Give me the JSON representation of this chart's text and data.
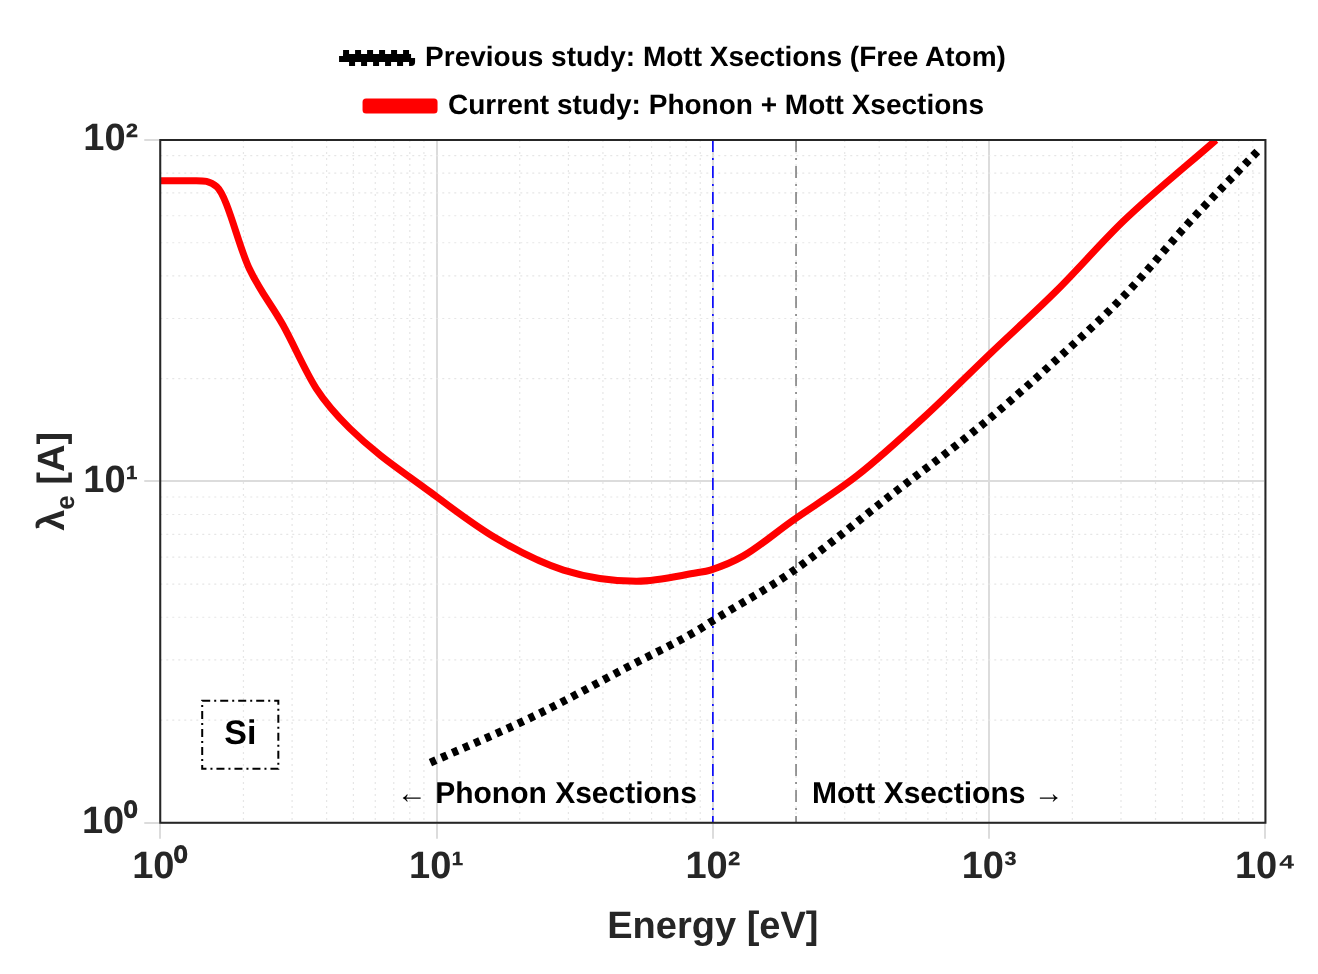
{
  "chart_data": {
    "type": "line",
    "xlabel": "Energy [eV]",
    "ylabel": "λ$_{e}$ [A]",
    "log": "xy",
    "xlim": [
      1,
      10000
    ],
    "ylim": [
      1,
      100
    ],
    "xticks": [
      {
        "value": 1,
        "label": "10⁰"
      },
      {
        "value": 10,
        "label": "10¹"
      },
      {
        "value": 100,
        "label": "10²"
      },
      {
        "value": 1000,
        "label": "10³"
      },
      {
        "value": 10000,
        "label": "10⁴"
      }
    ],
    "yticks": [
      {
        "value": 1,
        "label": "10⁰"
      },
      {
        "value": 10,
        "label": "10¹"
      },
      {
        "value": 100,
        "label": "10²"
      }
    ],
    "grid": true,
    "legend": "top",
    "marker": "none",
    "series": [
      {
        "name": "Previous study: Mott Xsections (Free Atom)",
        "color": "#000000",
        "line_style": "dotted",
        "x": [
          9.5,
          23,
          50,
          87.5,
          98,
          191,
          440,
          957,
          1760,
          3070,
          5360,
          9340
        ],
        "values": [
          1.5,
          2.07,
          2.88,
          3.65,
          3.87,
          5.4,
          9.1,
          14.8,
          22.8,
          34.9,
          58,
          92.5
        ]
      },
      {
        "name": "Current study: Phonon + Mott Xsections",
        "color": "#ff0000",
        "line_style": "solid",
        "x": [
          1,
          1.35,
          1.6,
          2.1,
          2.78,
          3.67,
          4.85,
          9.5,
          16.5,
          28.8,
          53,
          87.5,
          98,
          129,
          191,
          333,
          580,
          1010,
          1760,
          3070,
          6620
        ],
        "values": [
          76,
          76,
          73,
          42,
          28.7,
          18.7,
          14.3,
          9.3,
          6.8,
          5.5,
          5.1,
          5.4,
          5.5,
          6.05,
          7.6,
          10.4,
          15.4,
          23.7,
          36.3,
          58,
          100
        ]
      }
    ],
    "ref_lines": [
      {
        "axis": "x",
        "value": 100,
        "color": "#0000ff",
        "line_style": "dashdot"
      },
      {
        "axis": "x",
        "value": 200,
        "color": "#808080",
        "line_style": "dashdot"
      }
    ],
    "annotations": [
      "Si",
      "← Phonon Xsections",
      "Mott Xsections →"
    ]
  }
}
